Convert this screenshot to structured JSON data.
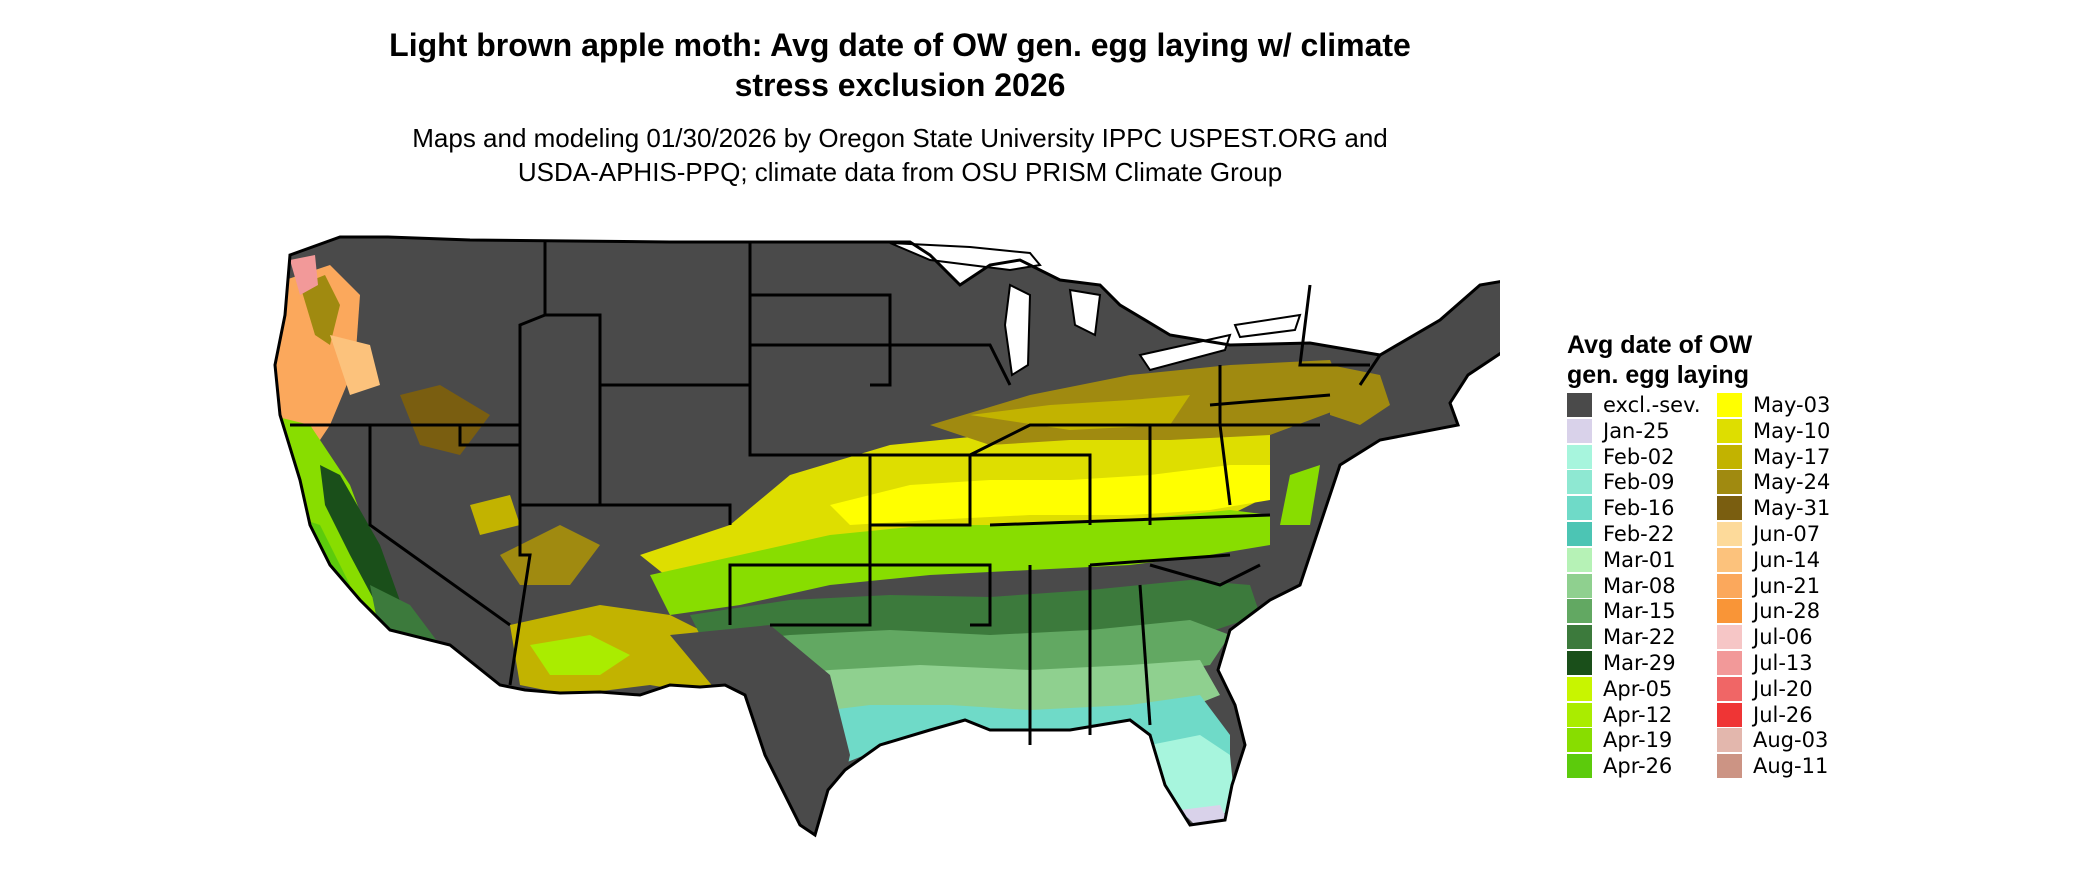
{
  "title": {
    "line1": "Light brown apple moth: Avg date of OW gen. egg laying w/ climate",
    "line2": "stress exclusion 2026"
  },
  "subtitle": {
    "line1": "Maps and modeling 01/30/2026 by Oregon State University IPPC USPEST.ORG and",
    "line2": "USDA-APHIS-PPQ; climate data from OSU PRISM Climate Group"
  },
  "legend": {
    "title_line1": "Avg date of OW",
    "title_line2": "gen. egg laying",
    "col1": [
      {
        "label": "excl.-sev.",
        "color": "#4a4a4a"
      },
      {
        "label": "Jan-25",
        "color": "#d9d2ea"
      },
      {
        "label": "Feb-02",
        "color": "#a7f5dd"
      },
      {
        "label": "Feb-09",
        "color": "#8ee8d2"
      },
      {
        "label": "Feb-16",
        "color": "#6fdac8"
      },
      {
        "label": "Feb-22",
        "color": "#4cc5b4"
      },
      {
        "label": "Mar-01",
        "color": "#b6f2b6"
      },
      {
        "label": "Mar-08",
        "color": "#8fd08f"
      },
      {
        "label": "Mar-15",
        "color": "#62a862"
      },
      {
        "label": "Mar-22",
        "color": "#3c7a3c"
      },
      {
        "label": "Mar-29",
        "color": "#1a4f1a"
      },
      {
        "label": "Apr-05",
        "color": "#c8f500"
      },
      {
        "label": "Apr-12",
        "color": "#aaec00"
      },
      {
        "label": "Apr-19",
        "color": "#88dd00"
      },
      {
        "label": "Apr-26",
        "color": "#5ccb0c"
      }
    ],
    "col2": [
      {
        "label": "May-03",
        "color": "#ffff00"
      },
      {
        "label": "May-10",
        "color": "#dede00"
      },
      {
        "label": "May-17",
        "color": "#c2b300"
      },
      {
        "label": "May-24",
        "color": "#a08a10"
      },
      {
        "label": "May-31",
        "color": "#7a5e10"
      },
      {
        "label": "Jun-07",
        "color": "#fdda9a"
      },
      {
        "label": "Jun-14",
        "color": "#fcc27c"
      },
      {
        "label": "Jun-21",
        "color": "#fba85c"
      },
      {
        "label": "Jun-28",
        "color": "#f99537"
      },
      {
        "label": "Jul-06",
        "color": "#f6c6c6"
      },
      {
        "label": "Jul-13",
        "color": "#f29999"
      },
      {
        "label": "Jul-20",
        "color": "#f06666"
      },
      {
        "label": "Jul-26",
        "color": "#ef3535"
      },
      {
        "label": "Aug-03",
        "color": "#e3b7ad"
      },
      {
        "label": "Aug-11",
        "color": "#cc9484"
      }
    ]
  }
}
